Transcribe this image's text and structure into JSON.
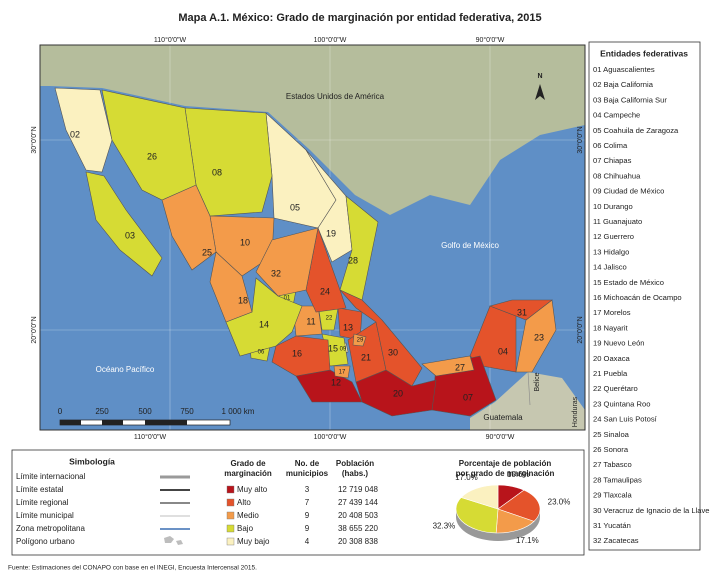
{
  "title": "Mapa A.1. México: Grado de marginación por entidad federativa, 2015",
  "map": {
    "meridians": [
      "110°0'0\"W",
      "100°0'0\"W",
      "90°0'0\"W"
    ],
    "parallels": [
      "30°0'0\"N",
      "20°0'0\"N"
    ],
    "places": [
      "Estados Unidos de América",
      "Golfo de México",
      "Océano Pacífico",
      "Belice",
      "Guatemala",
      "Honduras"
    ],
    "north": "N",
    "scale": [
      "0",
      "250",
      "500",
      "750",
      "1 000 km"
    ],
    "states": [
      {
        "label": "01",
        "grade": "Bajo"
      },
      {
        "label": "02",
        "grade": "Muy bajo"
      },
      {
        "label": "03",
        "grade": "Bajo"
      },
      {
        "label": "04",
        "grade": "Alto"
      },
      {
        "label": "05",
        "grade": "Muy bajo"
      },
      {
        "label": "06",
        "grade": "Bajo"
      },
      {
        "label": "07",
        "grade": "Muy alto"
      },
      {
        "label": "08",
        "grade": "Bajo"
      },
      {
        "label": "09",
        "grade": "Muy bajo"
      },
      {
        "label": "10",
        "grade": "Medio"
      },
      {
        "label": "11",
        "grade": "Medio"
      },
      {
        "label": "12",
        "grade": "Muy alto"
      },
      {
        "label": "13",
        "grade": "Alto"
      },
      {
        "label": "14",
        "grade": "Bajo"
      },
      {
        "label": "15",
        "grade": "Bajo"
      },
      {
        "label": "16",
        "grade": "Alto"
      },
      {
        "label": "17",
        "grade": "Medio"
      },
      {
        "label": "18",
        "grade": "Medio"
      },
      {
        "label": "19",
        "grade": "Muy bajo"
      },
      {
        "label": "20",
        "grade": "Muy alto"
      },
      {
        "label": "21",
        "grade": "Alto"
      },
      {
        "label": "22",
        "grade": "Bajo"
      },
      {
        "label": "23",
        "grade": "Medio"
      },
      {
        "label": "24",
        "grade": "Alto"
      },
      {
        "label": "25",
        "grade": "Medio"
      },
      {
        "label": "26",
        "grade": "Bajo"
      },
      {
        "label": "27",
        "grade": "Medio"
      },
      {
        "label": "28",
        "grade": "Bajo"
      },
      {
        "label": "29",
        "grade": "Medio"
      },
      {
        "label": "30",
        "grade": "Alto"
      },
      {
        "label": "31",
        "grade": "Alto"
      },
      {
        "label": "32",
        "grade": "Medio"
      }
    ]
  },
  "legend": {
    "title": "Entidades federativas",
    "items": [
      "01 Aguascalientes",
      "02 Baja California",
      "03 Baja California Sur",
      "04 Campeche",
      "05 Coahuila de Zaragoza",
      "06 Colima",
      "07 Chiapas",
      "08 Chihuahua",
      "09 Ciudad de México",
      "10 Durango",
      "11 Guanajuato",
      "12 Guerrero",
      "13 Hidalgo",
      "14 Jalisco",
      "15 Estado de México",
      "16 Michoacán de Ocampo",
      "17 Morelos",
      "18 Nayarit",
      "19 Nuevo León",
      "20 Oaxaca",
      "21 Puebla",
      "22 Querétaro",
      "23 Quintana Roo",
      "24 San Luis Potosí",
      "25 Sinaloa",
      "26 Sonora",
      "27 Tabasco",
      "28 Tamaulipas",
      "29 Tlaxcala",
      "30 Veracruz de Ignacio de la Llave",
      "31 Yucatán",
      "32 Zacatecas"
    ]
  },
  "symbology": {
    "title": "Simbología",
    "items": [
      "Límite internacional",
      "Límite estatal",
      "Límite regional",
      "Límite municipal",
      "Zona metropolitana",
      "Polígono urbano"
    ]
  },
  "grades": {
    "headers": [
      "Grado de marginación",
      "No. de municipios",
      "Población (habs.)"
    ],
    "rows": [
      {
        "grade": "Muy alto",
        "count": 3,
        "population": "12 719 048"
      },
      {
        "grade": "Alto",
        "count": 7,
        "population": "27 439 144"
      },
      {
        "grade": "Medio",
        "count": 9,
        "population": "20 408 503"
      },
      {
        "grade": "Bajo",
        "count": 9,
        "population": "38 655 220"
      },
      {
        "grade": "Muy bajo",
        "count": 4,
        "population": "20 308 838"
      }
    ]
  },
  "chart_data": {
    "type": "pie",
    "title": "Porcentaje de población por grado de marginación",
    "values": [
      10.6,
      23.0,
      17.1,
      32.3,
      17.0
    ],
    "value_labels": [
      "10.6%",
      "23.0%",
      "17.1%",
      "32.3%",
      "17.0%"
    ],
    "colors": [
      "#b8141b",
      "#e4532b",
      "#f39b4a",
      "#d6db34",
      "#fbf1c0"
    ]
  },
  "source": "Fuente: Estimaciones del CONAPO con base en el INEGI, Encuesta Intercensal 2015."
}
